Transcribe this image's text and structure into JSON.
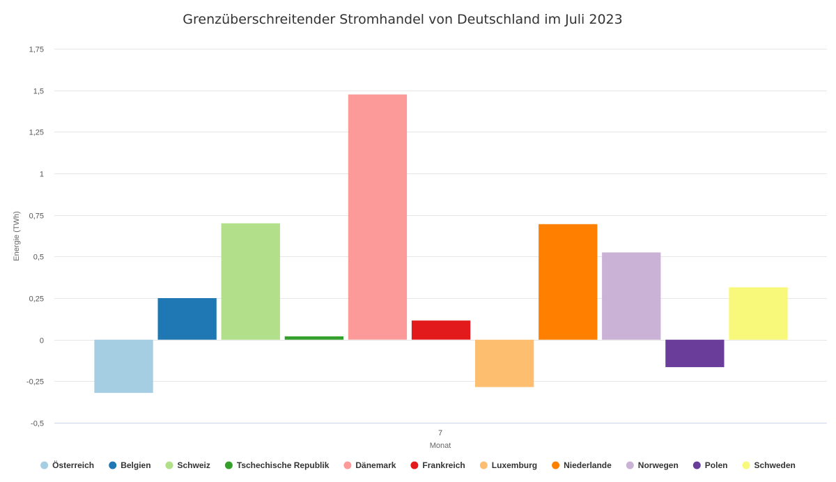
{
  "chart_data": {
    "type": "bar",
    "title": "Grenzüberschreitender Stromhandel von Deutschland im Juli 2023",
    "xlabel": "Monat",
    "ylabel": "Energie (TWh)",
    "categories": [
      "7"
    ],
    "ylim": [
      -0.5,
      1.75
    ],
    "yticks": [
      -0.5,
      -0.25,
      0,
      0.25,
      0.5,
      0.75,
      1,
      1.25,
      1.5,
      1.75
    ],
    "ytick_labels": [
      "-0,5",
      "-0,25",
      "0",
      "0,25",
      "0,5",
      "0,75",
      "1",
      "1,25",
      "1,5",
      "1,75"
    ],
    "grid": true,
    "legend": "bottom",
    "series": [
      {
        "name": "Österreich",
        "values": [
          -0.32
        ],
        "color": "#a6cee3"
      },
      {
        "name": "Belgien",
        "values": [
          0.25
        ],
        "color": "#1f78b4"
      },
      {
        "name": "Schweiz",
        "values": [
          0.7
        ],
        "color": "#b2df8a"
      },
      {
        "name": "Tschechische Republik",
        "values": [
          0.02
        ],
        "color": "#33a02c"
      },
      {
        "name": "Dänemark",
        "values": [
          1.475
        ],
        "color": "#fb9a99"
      },
      {
        "name": "Frankreich",
        "values": [
          0.115
        ],
        "color": "#e31a1c"
      },
      {
        "name": "Luxemburg",
        "values": [
          -0.285
        ],
        "color": "#fdbf6f"
      },
      {
        "name": "Niederlande",
        "values": [
          0.695
        ],
        "color": "#ff7f00"
      },
      {
        "name": "Norwegen",
        "values": [
          0.525
        ],
        "color": "#cab2d6"
      },
      {
        "name": "Polen",
        "values": [
          -0.165
        ],
        "color": "#6a3d9a"
      },
      {
        "name": "Schweden",
        "values": [
          0.315
        ],
        "color": "#f8f87a"
      }
    ]
  }
}
